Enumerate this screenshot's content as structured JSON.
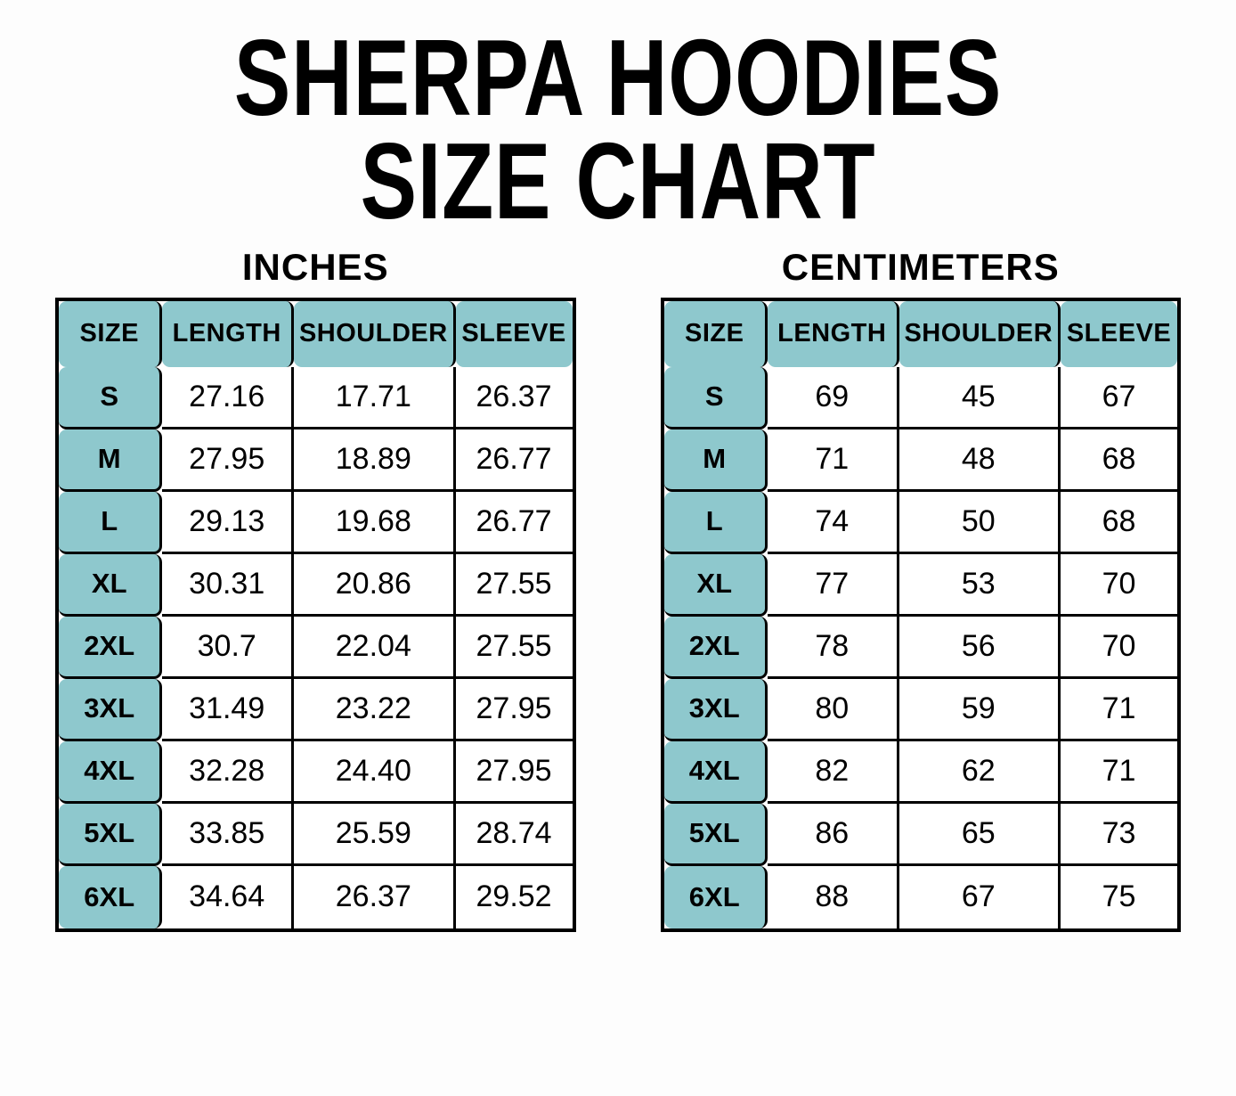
{
  "title": {
    "line1": "SHERPA HOODIES",
    "line2": "SIZE CHART"
  },
  "colors": {
    "header_bg": "#8ec8cd",
    "border": "#000000",
    "text": "#000000",
    "background": "#fdfdfd"
  },
  "chart_data": [
    {
      "type": "table",
      "title": "INCHES",
      "columns": [
        "SIZE",
        "LENGTH",
        "SHOULDER",
        "SLEEVE"
      ],
      "rows": [
        [
          "S",
          "27.16",
          "17.71",
          "26.37"
        ],
        [
          "M",
          "27.95",
          "18.89",
          "26.77"
        ],
        [
          "L",
          "29.13",
          "19.68",
          "26.77"
        ],
        [
          "XL",
          "30.31",
          "20.86",
          "27.55"
        ],
        [
          "2XL",
          "30.7",
          "22.04",
          "27.55"
        ],
        [
          "3XL",
          "31.49",
          "23.22",
          "27.95"
        ],
        [
          "4XL",
          "32.28",
          "24.40",
          "27.95"
        ],
        [
          "5XL",
          "33.85",
          "25.59",
          "28.74"
        ],
        [
          "6XL",
          "34.64",
          "26.37",
          "29.52"
        ]
      ]
    },
    {
      "type": "table",
      "title": "CENTIMETERS",
      "columns": [
        "SIZE",
        "LENGTH",
        "SHOULDER",
        "SLEEVE"
      ],
      "rows": [
        [
          "S",
          "69",
          "45",
          "67"
        ],
        [
          "M",
          "71",
          "48",
          "68"
        ],
        [
          "L",
          "74",
          "50",
          "68"
        ],
        [
          "XL",
          "77",
          "53",
          "70"
        ],
        [
          "2XL",
          "78",
          "56",
          "70"
        ],
        [
          "3XL",
          "80",
          "59",
          "71"
        ],
        [
          "4XL",
          "82",
          "62",
          "71"
        ],
        [
          "5XL",
          "86",
          "65",
          "73"
        ],
        [
          "6XL",
          "88",
          "67",
          "75"
        ]
      ]
    }
  ]
}
